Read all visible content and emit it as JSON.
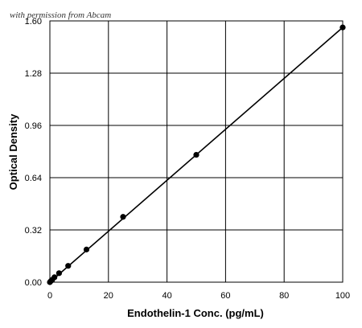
{
  "watermark": "with permission from Abcam",
  "chart_data": {
    "type": "line",
    "title": "",
    "xlabel": "Endothelin-1 Conc. (pg/mL)",
    "ylabel": "Optical Density",
    "xlim": [
      0,
      100
    ],
    "ylim": [
      0.0,
      1.6
    ],
    "xticks": [
      0,
      20,
      40,
      60,
      80,
      100
    ],
    "xtick_labels": [
      "0",
      "20",
      "40",
      "60",
      "80",
      "100"
    ],
    "yticks": [
      0.0,
      0.32,
      0.64,
      0.96,
      1.28,
      1.6
    ],
    "ytick_labels": [
      "0.00",
      "0.32",
      "0.64",
      "0.96",
      "1.28",
      "1.60"
    ],
    "grid": true,
    "series": [
      {
        "x": [
          0,
          0.39,
          0.78,
          1.56,
          3.13,
          6.25,
          12.5,
          25,
          50,
          100
        ],
        "y": [
          0.0,
          0.008,
          0.014,
          0.03,
          0.055,
          0.1,
          0.2,
          0.4,
          0.78,
          1.56
        ]
      }
    ],
    "fit_line": {
      "x": [
        0,
        100
      ],
      "y": [
        0.0,
        1.56
      ]
    },
    "colors": {
      "line": "#000000",
      "marker": "#000000",
      "grid": "#000000"
    }
  }
}
